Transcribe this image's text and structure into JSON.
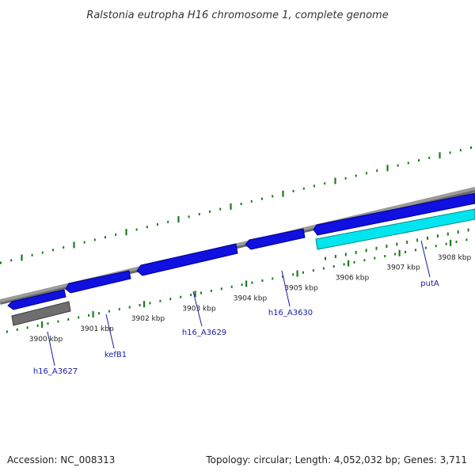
{
  "title": "Ralstonia eutropha H16 chromosome 1, complete genome",
  "colors": {
    "backbone": "#8c8c8c",
    "forward_gene": "#1010e0",
    "reverse_gene": "#6e6e6e",
    "highlight_gene": "#00e5ee",
    "tick": "#1d7a1d",
    "gene_label": "#1a1aa6"
  },
  "ticks": [
    {
      "label": "3900 kbp",
      "kbp": 3900
    },
    {
      "label": "3901 kbp",
      "kbp": 3901
    },
    {
      "label": "3902 kbp",
      "kbp": 3902
    },
    {
      "label": "3903 kbp",
      "kbp": 3903
    },
    {
      "label": "3904 kbp",
      "kbp": 3904
    },
    {
      "label": "3905 kbp",
      "kbp": 3905
    },
    {
      "label": "3906 kbp",
      "kbp": 3906
    },
    {
      "label": "3907 kbp",
      "kbp": 3907
    },
    {
      "label": "3908 kbp",
      "kbp": 3908
    }
  ],
  "genes": [
    {
      "name": "h16_A3627",
      "strand": "reverse"
    },
    {
      "name": "kefB1",
      "strand": "forward"
    },
    {
      "name": "h16_A3629",
      "strand": "forward"
    },
    {
      "name": "h16_A3630",
      "strand": "forward"
    },
    {
      "name": "putA",
      "strand": "forward"
    }
  ],
  "footer": {
    "accession": "Accession: NC_008313",
    "topology": "Topology: circular; Length: 4,052,032 bp; Genes: 3,711"
  }
}
